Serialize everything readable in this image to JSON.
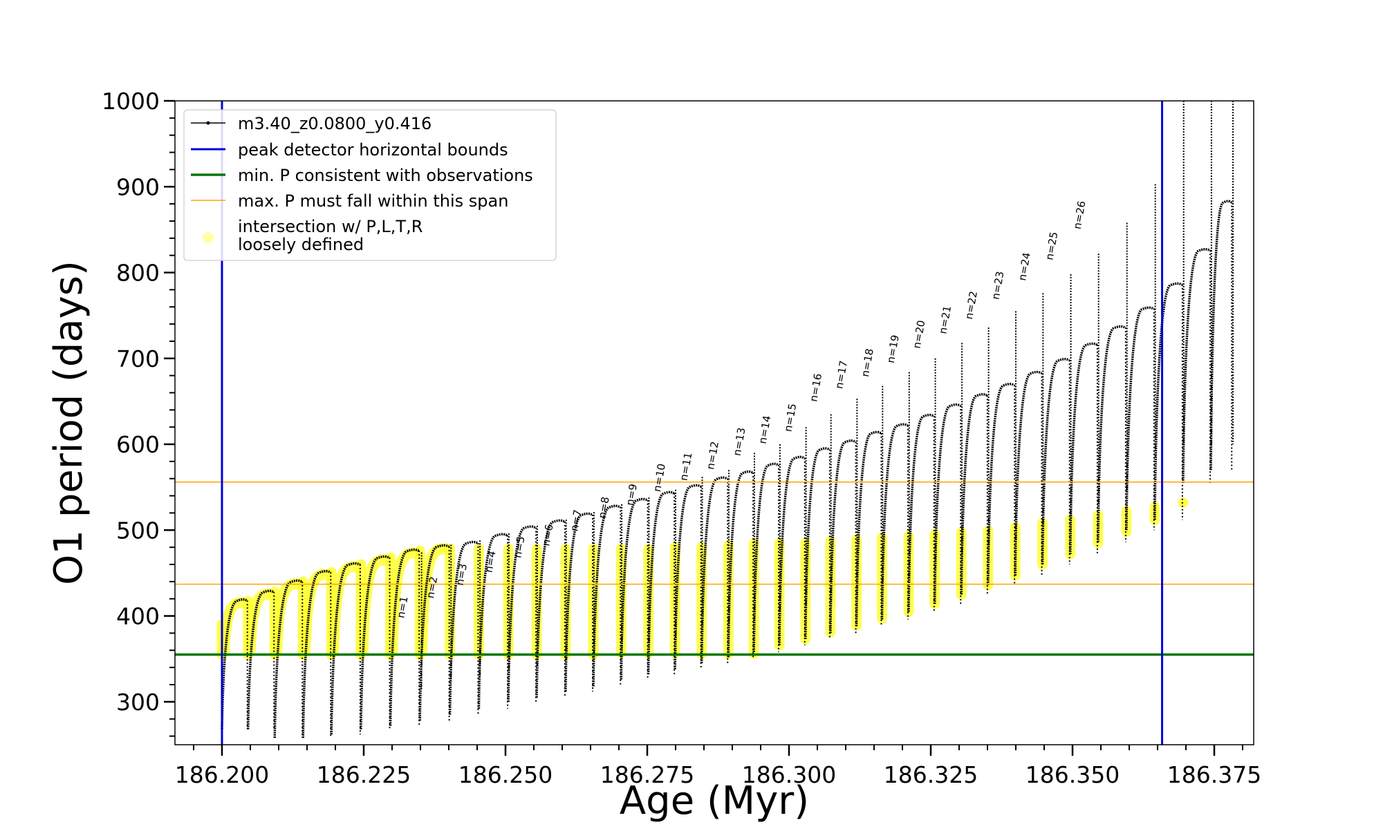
{
  "chart_data": {
    "type": "scatter",
    "xlabel": "Age (Myr)",
    "ylabel": "O1 period (days)",
    "xlim": [
      186.193,
      186.3825
    ],
    "ylim": [
      250,
      1000
    ],
    "xticks": [
      186.2,
      186.225,
      186.25,
      186.275,
      186.3,
      186.325,
      186.35,
      186.375
    ],
    "xtick_labels": [
      "186.200",
      "186.225",
      "186.250",
      "186.275",
      "186.300",
      "186.325",
      "186.350",
      "186.375"
    ],
    "yticks": [
      300,
      400,
      500,
      600,
      700,
      800,
      900,
      1000
    ],
    "ytick_labels": [
      "300",
      "400",
      "500",
      "600",
      "700",
      "800",
      "900",
      "1000"
    ],
    "grid": false,
    "legend_position": "upper-left",
    "legend": [
      {
        "label": "m3.40_z0.0800_y0.416",
        "color": "#000000",
        "style": "line-marker"
      },
      {
        "label": "peak detector horizontal bounds",
        "color": "#0000dd",
        "style": "line"
      },
      {
        "label": "min. P consistent with observations",
        "color": "#007700",
        "style": "line"
      },
      {
        "label": "max. P must fall within this span",
        "color": "#ffa500",
        "style": "thin-line"
      },
      {
        "label_lines": [
          "intersection w/ P,L,T,R",
          "loosely defined"
        ],
        "color": "#ffff66",
        "style": "marker"
      }
    ],
    "vlines": [
      {
        "x": 186.2,
        "color": "#0000dd"
      },
      {
        "x": 186.3658,
        "color": "#0000dd"
      }
    ],
    "hlines": [
      {
        "y": 355,
        "color": "#007700"
      },
      {
        "y": 437,
        "color": "#ffa500"
      },
      {
        "y": 556,
        "color": "#ffa500"
      }
    ],
    "pulses": [
      {
        "x0": 186.2,
        "x1": 186.2046,
        "min": 268,
        "max": 418
      },
      {
        "x0": 186.2046,
        "x1": 186.2093,
        "min": 268,
        "max": 428
      },
      {
        "x0": 186.2093,
        "x1": 186.2143,
        "min": 258,
        "max": 440
      },
      {
        "x0": 186.2143,
        "x1": 186.2193,
        "min": 258,
        "max": 451
      },
      {
        "x0": 186.2193,
        "x1": 186.2245,
        "min": 262,
        "max": 460
      },
      {
        "x0": 186.2245,
        "x1": 186.2297,
        "min": 268,
        "max": 468
      },
      {
        "x0": 186.2297,
        "x1": 186.2349,
        "min": 272,
        "max": 476
      },
      {
        "x0": 186.2349,
        "x1": 186.2402,
        "min": 278,
        "max": 481
      },
      {
        "x0": 186.2402,
        "x1": 186.2453,
        "min": 285,
        "max": 485
      },
      {
        "x0": 186.2453,
        "x1": 186.2505,
        "min": 292,
        "max": 494
      },
      {
        "x0": 186.2505,
        "x1": 186.2555,
        "min": 300,
        "max": 503
      },
      {
        "x0": 186.2555,
        "x1": 186.2606,
        "min": 305,
        "max": 510
      },
      {
        "x0": 186.2606,
        "x1": 186.2655,
        "min": 312,
        "max": 518
      },
      {
        "x0": 186.2655,
        "x1": 186.2704,
        "min": 318,
        "max": 527
      },
      {
        "x0": 186.2704,
        "x1": 186.2752,
        "min": 326,
        "max": 535
      },
      {
        "x0": 186.2752,
        "x1": 186.2799,
        "min": 332,
        "max": 543
      },
      {
        "x0": 186.2799,
        "x1": 186.2846,
        "min": 338,
        "max": 551
      },
      {
        "x0": 186.2846,
        "x1": 186.2893,
        "min": 345,
        "max": 560
      },
      {
        "x0": 186.2893,
        "x1": 186.2938,
        "min": 352,
        "max": 567
      },
      {
        "x0": 186.2938,
        "x1": 186.2983,
        "min": 358,
        "max": 576
      },
      {
        "x0": 186.2983,
        "x1": 186.3029,
        "min": 366,
        "max": 584
      },
      {
        "x0": 186.3029,
        "x1": 186.3073,
        "min": 373,
        "max": 594
      },
      {
        "x0": 186.3073,
        "x1": 186.3119,
        "min": 380,
        "max": 603
      },
      {
        "x0": 186.3119,
        "x1": 186.3164,
        "min": 388,
        "max": 613
      },
      {
        "x0": 186.3164,
        "x1": 186.3211,
        "min": 396,
        "max": 622
      },
      {
        "x0": 186.3211,
        "x1": 186.3257,
        "min": 405,
        "max": 633
      },
      {
        "x0": 186.3257,
        "x1": 186.3304,
        "min": 414,
        "max": 645
      },
      {
        "x0": 186.3304,
        "x1": 186.3351,
        "min": 425,
        "max": 657
      },
      {
        "x0": 186.3351,
        "x1": 186.3399,
        "min": 436,
        "max": 669
      },
      {
        "x0": 186.3399,
        "x1": 186.3447,
        "min": 447,
        "max": 683
      },
      {
        "x0": 186.3447,
        "x1": 186.3496,
        "min": 460,
        "max": 698
      },
      {
        "x0": 186.3496,
        "x1": 186.3545,
        "min": 472,
        "max": 716
      },
      {
        "x0": 186.3545,
        "x1": 186.3595,
        "min": 486,
        "max": 736
      },
      {
        "x0": 186.3595,
        "x1": 186.3645,
        "min": 500,
        "max": 758
      },
      {
        "x0": 186.3645,
        "x1": 186.3695,
        "min": 512,
        "max": 786
      },
      {
        "x0": 186.3695,
        "x1": 186.3744,
        "min": 555,
        "max": 826
      },
      {
        "x0": 186.3744,
        "x1": 186.3782,
        "min": 570,
        "max": 882
      }
    ],
    "spikes": [
      {
        "x": 186.2352,
        "top": 474
      },
      {
        "x": 186.2404,
        "top": 483
      },
      {
        "x": 186.2455,
        "top": 488
      },
      {
        "x": 186.2506,
        "top": 496
      },
      {
        "x": 186.2556,
        "top": 505
      },
      {
        "x": 186.2607,
        "top": 512
      },
      {
        "x": 186.2656,
        "top": 521
      },
      {
        "x": 186.2705,
        "top": 530
      },
      {
        "x": 186.2753,
        "top": 538
      },
      {
        "x": 186.28,
        "top": 547
      },
      {
        "x": 186.2847,
        "top": 562
      },
      {
        "x": 186.2894,
        "top": 570
      },
      {
        "x": 186.2939,
        "top": 590
      },
      {
        "x": 186.2984,
        "top": 600
      },
      {
        "x": 186.303,
        "top": 620
      },
      {
        "x": 186.3074,
        "top": 635
      },
      {
        "x": 186.312,
        "top": 653
      },
      {
        "x": 186.3165,
        "top": 668
      },
      {
        "x": 186.3212,
        "top": 684
      },
      {
        "x": 186.3258,
        "top": 700
      },
      {
        "x": 186.3305,
        "top": 718
      },
      {
        "x": 186.3352,
        "top": 736
      },
      {
        "x": 186.34,
        "top": 755
      },
      {
        "x": 186.3448,
        "top": 776
      },
      {
        "x": 186.3497,
        "top": 798
      },
      {
        "x": 186.3546,
        "top": 822
      },
      {
        "x": 186.3596,
        "top": 858
      },
      {
        "x": 186.3646,
        "top": 903
      },
      {
        "x": 186.3696,
        "top": 1000
      },
      {
        "x": 186.3745,
        "top": 1000
      },
      {
        "x": 186.3783,
        "top": 1000
      }
    ],
    "intersections": [
      {
        "x": 186.2,
        "low": 355,
        "high": 390
      },
      {
        "x": 186.2046,
        "low": 355,
        "high": 417
      },
      {
        "x": 186.2093,
        "low": 355,
        "high": 428
      },
      {
        "x": 186.2143,
        "low": 355,
        "high": 440
      },
      {
        "x": 186.2193,
        "low": 355,
        "high": 451
      },
      {
        "x": 186.2245,
        "low": 355,
        "high": 460
      },
      {
        "x": 186.2297,
        "low": 355,
        "high": 468
      },
      {
        "x": 186.2349,
        "low": 355,
        "high": 476
      },
      {
        "x": 186.2402,
        "low": 355,
        "high": 478
      },
      {
        "x": 186.2453,
        "low": 355,
        "high": 478
      },
      {
        "x": 186.2505,
        "low": 355,
        "high": 478
      },
      {
        "x": 186.2555,
        "low": 355,
        "high": 478
      },
      {
        "x": 186.2606,
        "low": 355,
        "high": 478
      },
      {
        "x": 186.2655,
        "low": 355,
        "high": 478
      },
      {
        "x": 186.2704,
        "low": 357,
        "high": 478
      },
      {
        "x": 186.2752,
        "low": 357,
        "high": 478
      },
      {
        "x": 186.2799,
        "low": 357,
        "high": 480
      },
      {
        "x": 186.2846,
        "low": 356,
        "high": 480
      },
      {
        "x": 186.2893,
        "low": 356,
        "high": 482
      },
      {
        "x": 186.2938,
        "low": 356,
        "high": 484
      },
      {
        "x": 186.2983,
        "low": 366,
        "high": 485
      },
      {
        "x": 186.3029,
        "low": 373,
        "high": 485
      },
      {
        "x": 186.3073,
        "low": 381,
        "high": 487
      },
      {
        "x": 186.3119,
        "low": 389,
        "high": 489
      },
      {
        "x": 186.3164,
        "low": 397,
        "high": 491
      },
      {
        "x": 186.3211,
        "low": 405,
        "high": 493
      },
      {
        "x": 186.3257,
        "low": 414,
        "high": 495
      },
      {
        "x": 186.3304,
        "low": 425,
        "high": 497
      },
      {
        "x": 186.3351,
        "low": 436,
        "high": 499
      },
      {
        "x": 186.3399,
        "low": 447,
        "high": 503
      },
      {
        "x": 186.3447,
        "low": 460,
        "high": 508
      },
      {
        "x": 186.3496,
        "low": 472,
        "high": 512
      },
      {
        "x": 186.3545,
        "low": 485,
        "high": 517
      },
      {
        "x": 186.3595,
        "low": 498,
        "high": 522
      },
      {
        "x": 186.3645,
        "low": 512,
        "high": 527
      },
      {
        "x": 186.3695,
        "low": 532,
        "high": 532
      }
    ],
    "annotations": [
      {
        "text": "n=1",
        "x": 186.2321,
        "y": 397
      },
      {
        "text": "n=2",
        "x": 186.2373,
        "y": 420
      },
      {
        "text": "n=3",
        "x": 186.2425,
        "y": 435
      },
      {
        "text": "n=4",
        "x": 186.2476,
        "y": 450
      },
      {
        "text": "n=5",
        "x": 186.2527,
        "y": 467
      },
      {
        "text": "n=6",
        "x": 186.2577,
        "y": 481
      },
      {
        "text": "n=7",
        "x": 186.2627,
        "y": 498
      },
      {
        "text": "n=8",
        "x": 186.2676,
        "y": 513
      },
      {
        "text": "n=9",
        "x": 186.2725,
        "y": 528
      },
      {
        "text": "n=10",
        "x": 186.2773,
        "y": 544
      },
      {
        "text": "n=11",
        "x": 186.282,
        "y": 557
      },
      {
        "text": "n=12",
        "x": 186.2867,
        "y": 570
      },
      {
        "text": "n=13",
        "x": 186.2914,
        "y": 586
      },
      {
        "text": "n=14",
        "x": 186.2959,
        "y": 600
      },
      {
        "text": "n=15",
        "x": 186.3004,
        "y": 614
      },
      {
        "text": "n=16",
        "x": 186.3049,
        "y": 649
      },
      {
        "text": "n=17",
        "x": 186.3094,
        "y": 664
      },
      {
        "text": "n=18",
        "x": 186.314,
        "y": 678
      },
      {
        "text": "n=19",
        "x": 186.3185,
        "y": 694
      },
      {
        "text": "n=20",
        "x": 186.3231,
        "y": 711
      },
      {
        "text": "n=21",
        "x": 186.3277,
        "y": 728
      },
      {
        "text": "n=22",
        "x": 186.3323,
        "y": 745
      },
      {
        "text": "n=23",
        "x": 186.337,
        "y": 768
      },
      {
        "text": "n=24",
        "x": 186.3417,
        "y": 790
      },
      {
        "text": "n=25",
        "x": 186.3465,
        "y": 814
      },
      {
        "text": "n=26",
        "x": 186.3514,
        "y": 850
      }
    ]
  }
}
